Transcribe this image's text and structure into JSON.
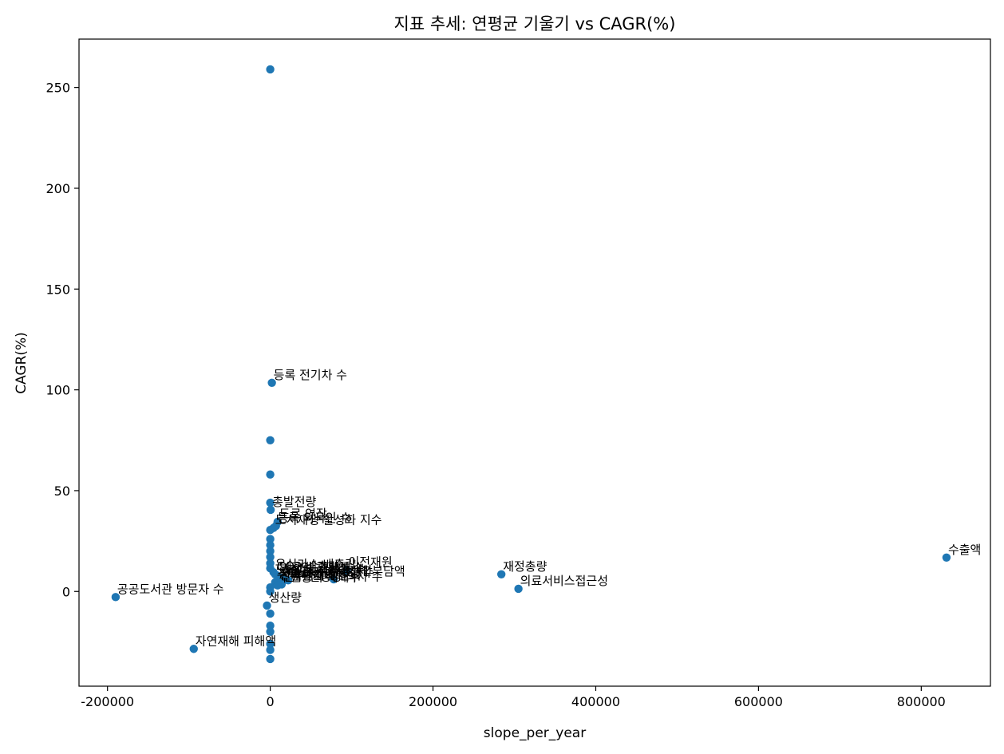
{
  "chart_data": {
    "type": "scatter",
    "title": "지표 추세: 연평균 기울기 vs CAGR(%)",
    "xlabel": "slope_per_year",
    "ylabel": "CAGR(%)",
    "xlim": [
      -235000,
      885000
    ],
    "ylim": [
      -47,
      274
    ],
    "xticks": [
      -200000,
      0,
      200000,
      400000,
      600000,
      800000
    ],
    "yticks": [
      0,
      50,
      100,
      150,
      200,
      250
    ],
    "color": "#1f77b4",
    "points": [
      {
        "x": 0,
        "y": 259
      },
      {
        "x": 2000,
        "y": 103.5,
        "label": "등록 전기차 수"
      },
      {
        "x": 0,
        "y": 75
      },
      {
        "x": 0,
        "y": 58
      },
      {
        "x": 0,
        "y": 44
      },
      {
        "x": 500,
        "y": 40.5,
        "label": "총발전량"
      },
      {
        "x": 9000,
        "y": 34.5,
        "label": "도로 연장"
      },
      {
        "x": 7000,
        "y": 32.5,
        "label": "등록 외국인 수"
      },
      {
        "x": 4000,
        "y": 31.5,
        "label": "도시재생 활성화 지수"
      },
      {
        "x": 0,
        "y": 30.5
      },
      {
        "x": 0,
        "y": 26
      },
      {
        "x": 0,
        "y": 23
      },
      {
        "x": 0,
        "y": 20
      },
      {
        "x": 0,
        "y": 17
      },
      {
        "x": 0,
        "y": 14
      },
      {
        "x": 0,
        "y": 11.5
      },
      {
        "x": 94000,
        "y": 10.5,
        "label": "이전재원"
      },
      {
        "x": 4000,
        "y": 9.5,
        "label": "온실가스 배출량"
      },
      {
        "x": 6000,
        "y": 8.5,
        "label": "CO2 배출량"
      },
      {
        "x": 9000,
        "y": 7.8,
        "label": "외국인 관광객 수"
      },
      {
        "x": 12000,
        "y": 7,
        "label": "사업체 종사자 수"
      },
      {
        "x": 15000,
        "y": 6.5,
        "label": "1인당 지역총생산"
      },
      {
        "x": 78000,
        "y": 6,
        "label": "지방세 부담액"
      },
      {
        "x": 22000,
        "y": 5.5,
        "label": "의료기관 병상 수"
      },
      {
        "x": 8000,
        "y": 5,
        "label": "문화시설 수"
      },
      {
        "x": 6000,
        "y": 4.5,
        "label": "주택 매매가격"
      },
      {
        "x": 10000,
        "y": 4,
        "label": "산업단지 생산액"
      },
      {
        "x": 14000,
        "y": 3.5,
        "label": "인구 천명당 의사 수"
      },
      {
        "x": 9000,
        "y": 3,
        "label": "주민등록 세대수"
      },
      {
        "x": 0,
        "y": 2
      },
      {
        "x": 0,
        "y": 0
      },
      {
        "x": -4000,
        "y": -7,
        "label": "생산량"
      },
      {
        "x": 0,
        "y": -11
      },
      {
        "x": 0,
        "y": -17
      },
      {
        "x": 0,
        "y": -20
      },
      {
        "x": 0,
        "y": -26
      },
      {
        "x": 0,
        "y": -29
      },
      {
        "x": 0,
        "y": -33.5
      },
      {
        "x": -190000,
        "y": -2.8,
        "label": "공공도서관 방문자 수"
      },
      {
        "x": -94000,
        "y": -28.5,
        "label": "자연재해 피해액"
      },
      {
        "x": 284000,
        "y": 8.5,
        "label": "재정총량"
      },
      {
        "x": 305000,
        "y": 1.3,
        "label": "의료서비스접근성"
      },
      {
        "x": 831000,
        "y": 16.8,
        "label": "수출액"
      }
    ]
  }
}
